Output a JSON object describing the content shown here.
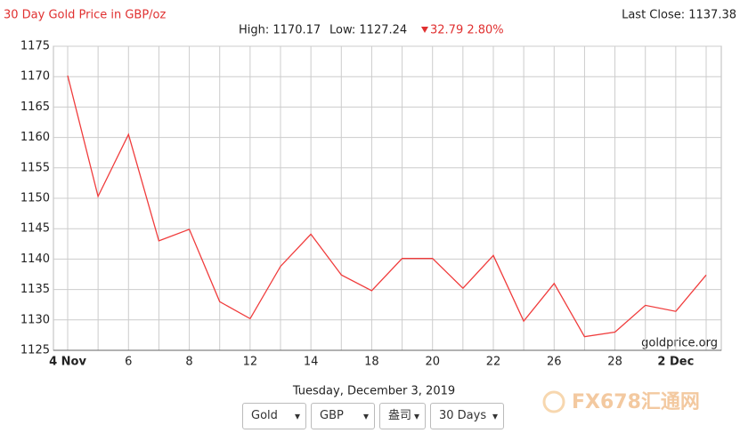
{
  "chart_data": {
    "type": "line",
    "title": "30 Day Gold Price in GBP/oz",
    "last_close": "Last Close: 1137.38",
    "high": "High: 1170.17",
    "low": "Low: 1127.24",
    "change": "32.79 2.80%",
    "watermark": "goldprice.org",
    "categories": [
      "4 Nov",
      null,
      "6",
      null,
      "8",
      null,
      "12",
      null,
      "14",
      null,
      "18",
      null,
      "20",
      null,
      "22",
      null,
      "26",
      null,
      "28",
      null,
      "2 Dec",
      null
    ],
    "series": [
      {
        "name": "Gold",
        "color": "#f03c3c",
        "values": [
          1170.17,
          1150.3,
          1160.5,
          1143.0,
          1144.9,
          1133.0,
          1130.2,
          1138.8,
          1144.1,
          1137.4,
          1134.8,
          1140.1,
          1140.1,
          1135.2,
          1140.6,
          1129.8,
          1136.0,
          1127.24,
          1128.0,
          1132.4,
          1131.4,
          1137.38
        ]
      }
    ],
    "ylim": [
      1125,
      1175
    ],
    "yticks": [
      1125,
      1130,
      1135,
      1140,
      1145,
      1150,
      1155,
      1160,
      1165,
      1170,
      1175
    ],
    "grid": true
  },
  "date": "Tuesday, December 3, 2019",
  "controls": [
    "Gold",
    "GBP",
    "盎司",
    "30 Days"
  ],
  "logo": "FX678汇通网"
}
